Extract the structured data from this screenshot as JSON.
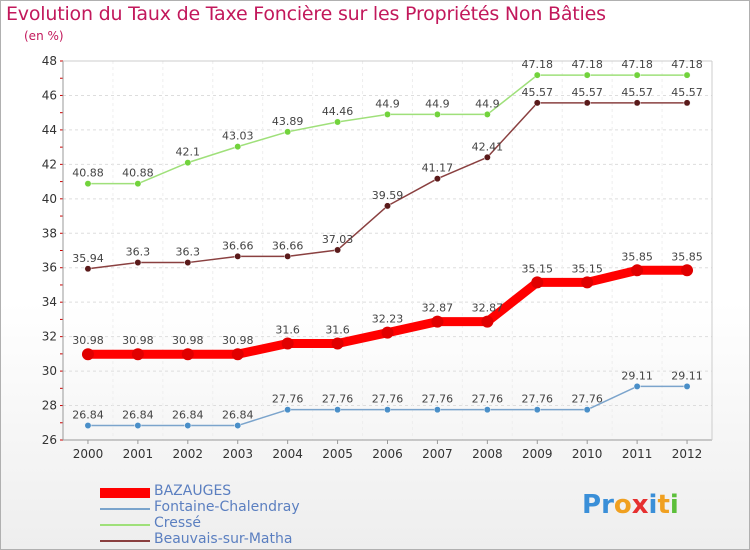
{
  "header": {
    "title": "Evolution du Taux de Taxe Foncière sur les Propriétés Non Bâties",
    "unit": "(en %)"
  },
  "chart_data": {
    "type": "line",
    "title": "Evolution du Taux de Taxe Foncière sur les Propriétés Non Bâties",
    "ylabel": "(en %)",
    "xlabel": "",
    "categories": [
      "2000",
      "2001",
      "2002",
      "2003",
      "2004",
      "2005",
      "2006",
      "2007",
      "2008",
      "2009",
      "2010",
      "2011",
      "2012"
    ],
    "ylim": [
      26,
      48
    ],
    "yticks": [
      26,
      28,
      30,
      32,
      34,
      36,
      38,
      40,
      42,
      44,
      46,
      48
    ],
    "grid": true,
    "series": [
      {
        "name": "BAZAUGES",
        "color": "#ff0000",
        "marker": "#e00000",
        "values": [
          30.98,
          30.98,
          30.98,
          30.98,
          31.6,
          31.6,
          32.23,
          32.87,
          32.87,
          35.15,
          35.15,
          35.85,
          35.85
        ],
        "labels": [
          "30.98",
          "30.98",
          "30.98",
          "30.98",
          "31.6",
          "31.6",
          "32.23",
          "32.87",
          "32.87",
          "35.15",
          "35.15",
          "35.85",
          "35.85"
        ]
      },
      {
        "name": "Fontaine-Chalendray",
        "color": "#7ba4cc",
        "marker": "#4a8fc8",
        "values": [
          26.84,
          26.84,
          26.84,
          26.84,
          27.76,
          27.76,
          27.76,
          27.76,
          27.76,
          27.76,
          27.76,
          29.11,
          29.11
        ],
        "labels": [
          "26.84",
          "26.84",
          "26.84",
          "26.84",
          "27.76",
          "27.76",
          "27.76",
          "27.76",
          "27.76",
          "27.76",
          "27.76",
          "29.11",
          "29.11"
        ]
      },
      {
        "name": "Cressé",
        "color": "#9fe07a",
        "marker": "#72d33c",
        "values": [
          40.88,
          40.88,
          42.1,
          43.03,
          43.89,
          44.46,
          44.9,
          44.9,
          44.9,
          47.18,
          47.18,
          47.18,
          47.18
        ],
        "labels": [
          "40.88",
          "40.88",
          "42.1",
          "43.03",
          "43.89",
          "44.46",
          "44.9",
          "44.9",
          "44.9",
          "47.18",
          "47.18",
          "47.18",
          "47.18"
        ]
      },
      {
        "name": "Beauvais-sur-Matha",
        "color": "#8a4040",
        "marker": "#5a1a1a",
        "values": [
          35.94,
          36.3,
          36.3,
          36.66,
          36.66,
          37.03,
          39.59,
          41.17,
          42.41,
          45.57,
          45.57,
          45.57,
          45.57
        ],
        "labels": [
          "35.94",
          "36.3",
          "36.3",
          "36.66",
          "36.66",
          "37.03",
          "39.59",
          "41.17",
          "42.41",
          "45.57",
          "45.57",
          "45.57",
          "45.57"
        ]
      }
    ]
  },
  "legend": [
    "BAZAUGES",
    "Fontaine-Chalendray",
    "Cressé",
    "Beauvais-sur-Matha"
  ],
  "logo": {
    "letters": [
      "P",
      "r",
      "o",
      "x",
      "i",
      "t",
      "i"
    ],
    "colors": [
      "#3a8fd8",
      "#3a8fd8",
      "#f0a020",
      "#e63030",
      "#3a8fd8",
      "#f0a020",
      "#5cbf3a"
    ]
  }
}
